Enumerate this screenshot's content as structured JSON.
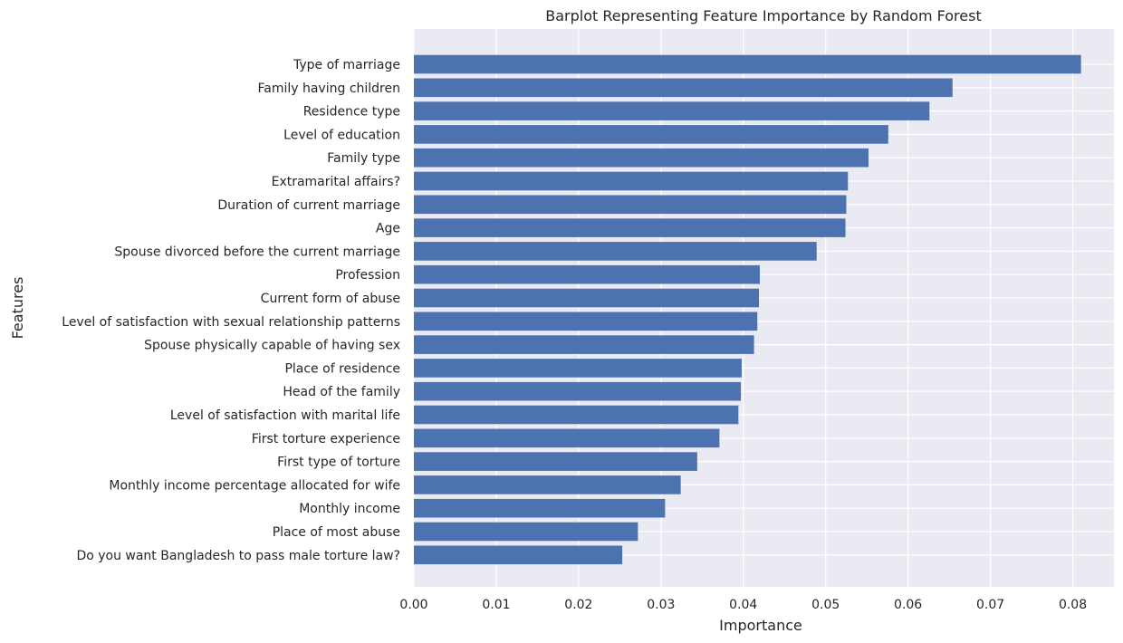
{
  "chart_data": {
    "type": "bar",
    "orientation": "horizontal",
    "title": "Barplot Representing Feature Importance by Random Forest",
    "xlabel": "Importance",
    "ylabel": "Features",
    "xlim": [
      0,
      0.085
    ],
    "xticks": [
      "0.00",
      "0.01",
      "0.02",
      "0.03",
      "0.04",
      "0.05",
      "0.06",
      "0.07",
      "0.08"
    ],
    "grid": true,
    "bar_color": "#4c72b0",
    "background_color": "#eaeaf2",
    "categories": [
      "Type of marriage",
      "Family having children",
      "Residence type",
      "Level of education",
      "Family type",
      "Extramarital affairs?",
      "Duration of current marriage",
      "Age",
      "Spouse divorced before the current marriage",
      "Profession",
      "Current form of abuse",
      "Level of satisfaction with sexual relationship patterns",
      "Spouse physically capable of having sex",
      "Place of residence",
      "Head of the family",
      "Level of satisfaction with marital life",
      "First torture experience",
      "First type of torture",
      "Monthly income percentage allocated for wife",
      "Monthly income",
      "Place of most abuse",
      "Do you want Bangladesh to pass male torture law?"
    ],
    "values": [
      0.081,
      0.0654,
      0.0626,
      0.0576,
      0.0552,
      0.0527,
      0.0525,
      0.0524,
      0.0489,
      0.042,
      0.0419,
      0.0417,
      0.0413,
      0.0398,
      0.0397,
      0.0394,
      0.0371,
      0.0344,
      0.0324,
      0.0305,
      0.0272,
      0.0253
    ]
  }
}
